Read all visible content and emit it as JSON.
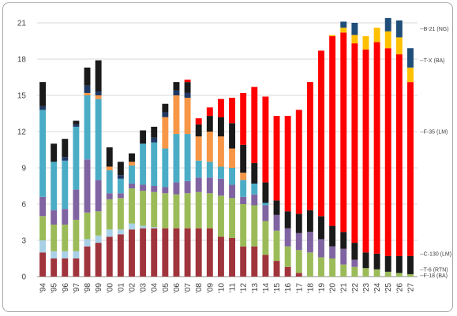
{
  "chart_data": {
    "type": "bar",
    "stacked": true,
    "title": "",
    "xlabel": "",
    "ylabel": "",
    "ylim": [
      0,
      21
    ],
    "yticks": [
      0,
      3,
      6,
      9,
      12,
      15,
      18,
      21
    ],
    "grid": "horizontal",
    "legend": "annotations-right",
    "categories": [
      "'94",
      "'95",
      "'96",
      "'97",
      "'98",
      "'99",
      "'00",
      "'01",
      "'02",
      "'03",
      "'04",
      "'05",
      "'06",
      "'07",
      "'08",
      "'09",
      "'10",
      "'11",
      "'12",
      "'13",
      "'14",
      "'15",
      "'16",
      "'17",
      "'18",
      "'19",
      "'20",
      "'21",
      "'22",
      "'23",
      "'24",
      "'25",
      "'26",
      "'27"
    ],
    "series": [
      {
        "name": "",
        "color": "#a0343c",
        "values": [
          2.0,
          1.5,
          1.5,
          1.5,
          2.5,
          2.8,
          3.3,
          3.5,
          3.9,
          4.0,
          4.0,
          4.0,
          4.0,
          4.0,
          4.0,
          4.0,
          3.3,
          3.2,
          2.5,
          2.5,
          1.8,
          1.3,
          0.8,
          0.3,
          0,
          0,
          0,
          0,
          0,
          0,
          0,
          0,
          0,
          0
        ]
      },
      {
        "name": "",
        "color": "#a8d0e6",
        "values": [
          1.0,
          0.6,
          0.6,
          0.6,
          0.6,
          0.6,
          0.6,
          0.4,
          0.5,
          0.2,
          0.1,
          0,
          0,
          0,
          0,
          0,
          0,
          0,
          0,
          0,
          0,
          0,
          0,
          0,
          0,
          0,
          0,
          0,
          0,
          0,
          0,
          0,
          0,
          0
        ]
      },
      {
        "name": "F-18 (BA)",
        "color": "#9bbb59",
        "values": [
          2.0,
          2.2,
          2.2,
          2.6,
          2.2,
          2.0,
          2.5,
          2.6,
          2.9,
          2.9,
          2.9,
          2.9,
          2.8,
          2.9,
          3.0,
          2.9,
          3.4,
          3.3,
          3.5,
          3.4,
          2.8,
          2.5,
          1.7,
          1.9,
          2.0,
          1.6,
          1.5,
          1.0,
          0.8,
          0.7,
          0.6,
          0.4,
          0.3,
          0.2
        ]
      },
      {
        "name": "",
        "color": "#8064a2",
        "values": [
          1.6,
          1.2,
          1.3,
          2.5,
          4.4,
          2.6,
          0.5,
          0.4,
          0.4,
          0.5,
          0.5,
          0.5,
          1.0,
          1.0,
          1.2,
          1.3,
          1.4,
          1.1,
          0.6,
          0.9,
          1.3,
          1.3,
          1.5,
          1.4,
          1.7,
          1.5,
          1.0,
          1.3,
          0.6,
          0,
          0,
          0,
          0,
          0
        ]
      },
      {
        "name": "",
        "color": "#4bacc6",
        "values": [
          7.2,
          4.0,
          4.0,
          5.2,
          5.3,
          6.7,
          1.9,
          1.2,
          1.5,
          3.4,
          3.6,
          3.2,
          4.0,
          3.9,
          1.4,
          1.3,
          1.0,
          1.4,
          1.4,
          0.9,
          0.2,
          0,
          0,
          0,
          0,
          0,
          0,
          0,
          0,
          0,
          0,
          0,
          0,
          0
        ]
      },
      {
        "name": "",
        "color": "#f79646",
        "values": [
          0,
          0,
          0,
          0,
          0.2,
          0.3,
          0.3,
          0,
          0.3,
          0,
          0,
          2.6,
          3.2,
          3.0,
          2.0,
          2.5,
          2.5,
          1.6,
          0.6,
          0,
          0,
          0,
          0,
          0,
          0,
          0,
          0,
          0,
          0,
          0,
          0,
          0,
          0,
          0
        ]
      },
      {
        "name": "",
        "color": "#1f3864",
        "values": [
          0.3,
          0,
          0.3,
          0.2,
          0.6,
          0.3,
          0,
          0.3,
          0,
          0,
          0.4,
          0.4,
          0.4,
          0.4,
          0,
          0,
          0,
          0,
          0,
          0,
          0,
          0,
          0,
          0,
          0,
          0,
          0,
          0,
          0,
          0,
          0,
          0,
          0,
          0
        ]
      },
      {
        "name": "",
        "color": "#1a1a1a",
        "values": [
          2.0,
          1.5,
          1.5,
          0.3,
          1.5,
          2.6,
          1.6,
          1.1,
          0.7,
          1.1,
          0.9,
          0.7,
          0.7,
          0.9,
          1.0,
          1.3,
          1.6,
          2.1,
          2.3,
          1.7,
          1.7,
          1.2,
          1.4,
          1.6,
          1.8,
          1.9,
          1.7,
          1.4,
          1.4,
          1.3,
          1.3,
          1.3,
          1.4,
          1.5
        ]
      },
      {
        "name": "F-35 (LM)",
        "color": "#ff0000",
        "values": [
          0,
          0,
          0,
          0,
          0,
          0,
          0,
          0,
          0,
          0,
          0,
          0,
          0,
          0.2,
          0.5,
          0.7,
          1.5,
          2.1,
          4.3,
          6.3,
          7.1,
          7.0,
          7.9,
          8.6,
          10.6,
          13.7,
          15.7,
          16.5,
          16.5,
          16.8,
          17.5,
          17.2,
          16.7,
          14.4
        ]
      },
      {
        "name": "T-X (BA)",
        "color": "#ffc000",
        "values": [
          0,
          0,
          0,
          0,
          0,
          0,
          0,
          0,
          0,
          0,
          0,
          0,
          0,
          0,
          0,
          0,
          0,
          0,
          0,
          0,
          0,
          0,
          0,
          0,
          0,
          0,
          0.1,
          0.4,
          0.7,
          1.1,
          1.2,
          1.4,
          1.4,
          1.2
        ]
      },
      {
        "name": "B-21 (NG)",
        "color": "#1f4e79",
        "values": [
          0,
          0,
          0,
          0,
          0,
          0,
          0,
          0,
          0,
          0,
          0,
          0,
          0,
          0,
          0,
          0,
          0,
          0,
          0,
          0,
          0,
          0,
          0,
          0,
          0,
          0,
          0,
          0.5,
          1.0,
          0,
          0,
          1.1,
          1.4,
          1.6
        ]
      }
    ],
    "annotations": [
      {
        "label": "B-21 (NG)",
        "y": 20.5
      },
      {
        "label": "T-X (BA)",
        "y": 17.9
      },
      {
        "label": "F-35 (LM)",
        "y": 12.0
      },
      {
        "label": "C-130 (LM)",
        "y": 1.9
      },
      {
        "label": "T-6 (RTN)",
        "y": 0.6
      },
      {
        "label": "F-18 (BA)",
        "y": 0.1
      }
    ]
  }
}
